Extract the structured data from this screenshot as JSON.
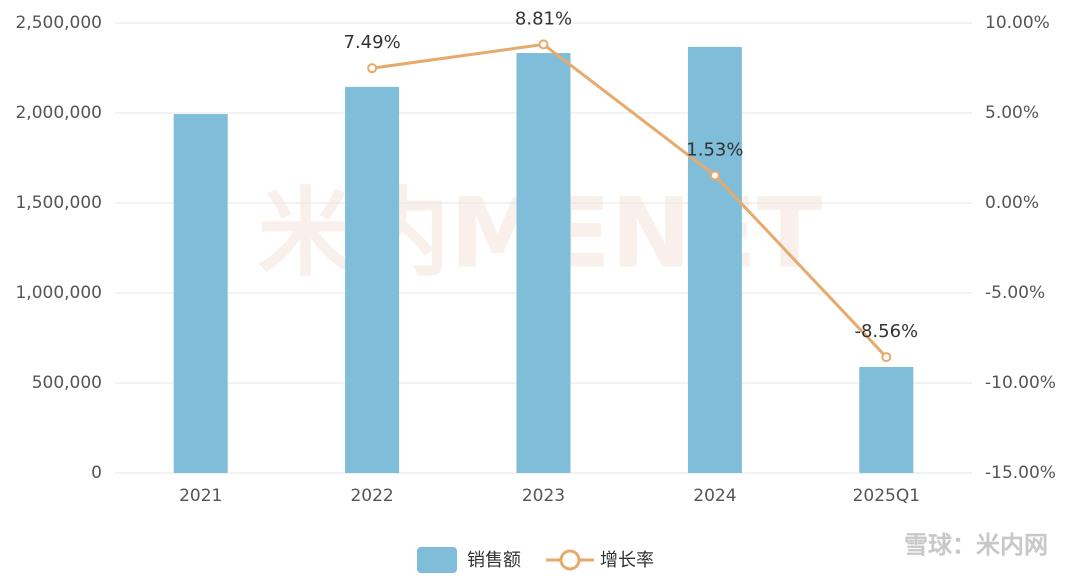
{
  "chart_data": {
    "type": "bar_line",
    "categories": [
      "2021",
      "2022",
      "2023",
      "2024",
      "2025Q1"
    ],
    "series": [
      {
        "name": "销售额",
        "type": "bar",
        "color": "#7fbdd9",
        "axis": "y",
        "values": [
          1994000,
          2145000,
          2333000,
          2367000,
          589000
        ]
      },
      {
        "name": "增长率",
        "type": "line",
        "color": "#e8a96c",
        "axis": "y2",
        "values": [
          null,
          7.49,
          8.81,
          1.53,
          -8.56
        ],
        "value_labels": [
          null,
          "7.49%",
          "8.81%",
          "1.53%",
          "-8.56%"
        ]
      }
    ],
    "ylim": [
      0,
      2500000
    ],
    "yticks": [
      0,
      {
        "value": 500000,
        "label": "500,000"
      },
      {
        "value": 1000000,
        "label": "1,000,000"
      },
      {
        "value": 1500000,
        "label": "1,500,000"
      },
      {
        "value": 2000000,
        "label": "2,000,000"
      },
      {
        "value": 2500000,
        "label": "2,500,000"
      }
    ],
    "y2lim": [
      -15,
      10
    ],
    "y2ticks": [
      {
        "value": -15,
        "label": "-15.00%"
      },
      {
        "value": -10,
        "label": "-10.00%"
      },
      {
        "value": -5,
        "label": "-5.00%"
      },
      {
        "value": 0,
        "label": "0.00%"
      },
      {
        "value": 5,
        "label": "5.00%"
      },
      {
        "value": 10,
        "label": "10.00%"
      }
    ],
    "grid": true,
    "legend": "bottom",
    "watermark": "米内MENET",
    "source_mark": "雪球：米内网"
  }
}
